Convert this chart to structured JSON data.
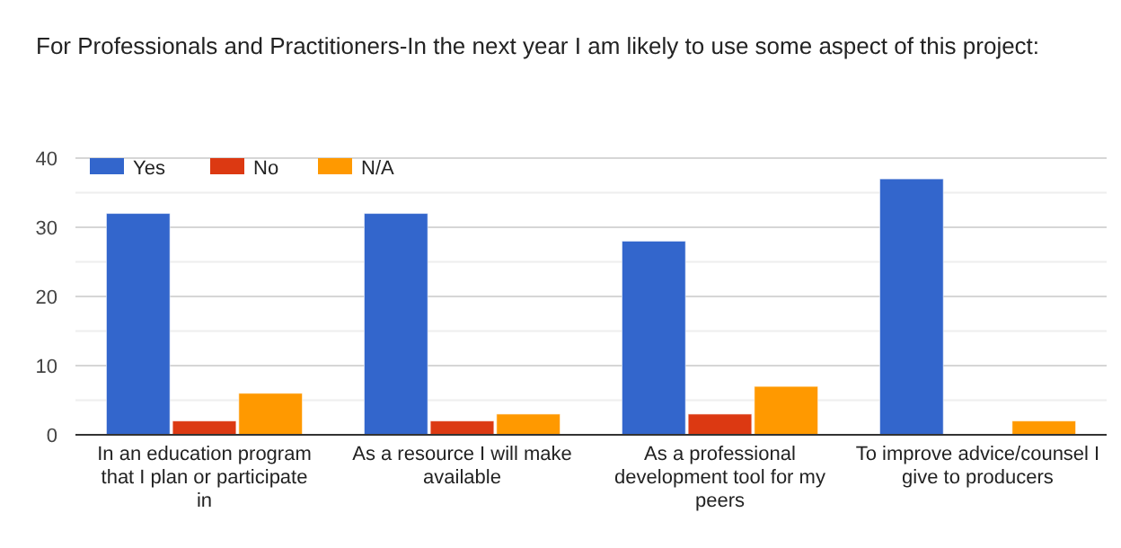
{
  "chart_data": {
    "type": "bar",
    "title": "For Professionals and Practitioners-In the next year I am likely to use some aspect of this project:",
    "categories": [
      "In an education program that I plan or participate in",
      "As a resource I will make available",
      "As a professional development tool for my peers",
      "To improve advice/counsel I give to producers"
    ],
    "series": [
      {
        "name": "Yes",
        "color": "#3366cc",
        "values": [
          32,
          32,
          28,
          37
        ]
      },
      {
        "name": "No",
        "color": "#dc3912",
        "values": [
          2,
          2,
          3,
          0
        ]
      },
      {
        "name": "N/A",
        "color": "#ff9900",
        "values": [
          6,
          3,
          7,
          2
        ]
      }
    ],
    "ylim": [
      0,
      40
    ],
    "yticks": [
      0,
      {
        "value": 5,
        "label": null
      },
      10,
      {
        "value": 15,
        "label": null
      },
      20,
      {
        "value": 25,
        "label": null
      },
      30,
      {
        "value": 35,
        "label": null
      },
      40
    ],
    "grid": "y",
    "legend": "top left"
  }
}
